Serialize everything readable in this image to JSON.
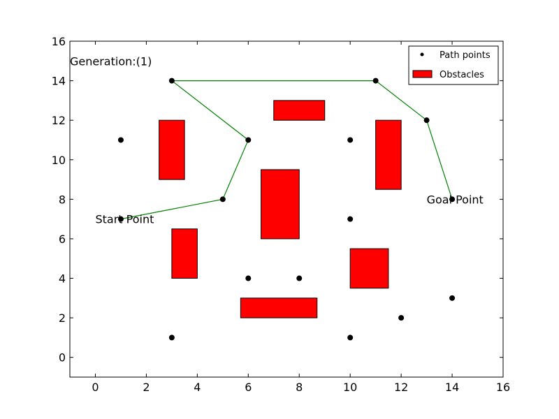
{
  "chart_data": {
    "type": "scatter",
    "xlim": [
      -1,
      16
    ],
    "ylim": [
      -1,
      16
    ],
    "x_ticks": [
      0,
      2,
      4,
      6,
      8,
      10,
      12,
      14,
      16
    ],
    "y_ticks": [
      0,
      2,
      4,
      6,
      8,
      10,
      12,
      14,
      16
    ],
    "grid": false,
    "legend_position": "top-right",
    "legend": {
      "path_points_label": "Path points",
      "obstacles_label": "Obstacles"
    },
    "annotations": {
      "generation": {
        "text": "Generation:(1)",
        "x": -1,
        "y": 15
      },
      "start": {
        "text": "Start Point",
        "x": 0,
        "y": 7
      },
      "goal": {
        "text": "Goal Point",
        "x": 13,
        "y": 8
      }
    },
    "path_points": [
      [
        1,
        11
      ],
      [
        3,
        14
      ],
      [
        6,
        11
      ],
      [
        10,
        11
      ],
      [
        11,
        14
      ],
      [
        13,
        12
      ],
      [
        1,
        7
      ],
      [
        5,
        8
      ],
      [
        10,
        7
      ],
      [
        14,
        8
      ],
      [
        6,
        4
      ],
      [
        8,
        4
      ],
      [
        14,
        3
      ],
      [
        12,
        2
      ],
      [
        3,
        1
      ],
      [
        10,
        1
      ]
    ],
    "path": [
      [
        1,
        7
      ],
      [
        5,
        8
      ],
      [
        6,
        11
      ],
      [
        3,
        14
      ],
      [
        11,
        14
      ],
      [
        13,
        12
      ],
      [
        14,
        8
      ]
    ],
    "obstacles": [
      {
        "x0": 2.5,
        "x1": 3.5,
        "y0": 9,
        "y1": 12
      },
      {
        "x0": 7,
        "x1": 9,
        "y0": 12,
        "y1": 13
      },
      {
        "x0": 11,
        "x1": 12,
        "y0": 8.5,
        "y1": 12
      },
      {
        "x0": 6.5,
        "x1": 8,
        "y0": 6,
        "y1": 9.5
      },
      {
        "x0": 3,
        "x1": 4,
        "y0": 4,
        "y1": 6.5
      },
      {
        "x0": 10,
        "x1": 11.5,
        "y0": 3.5,
        "y1": 5.5
      },
      {
        "x0": 5.7,
        "x1": 8.7,
        "y0": 2,
        "y1": 3
      }
    ],
    "colors": {
      "obstacle": "#ff0000",
      "path_line": "#008000",
      "point": "#000000"
    }
  }
}
